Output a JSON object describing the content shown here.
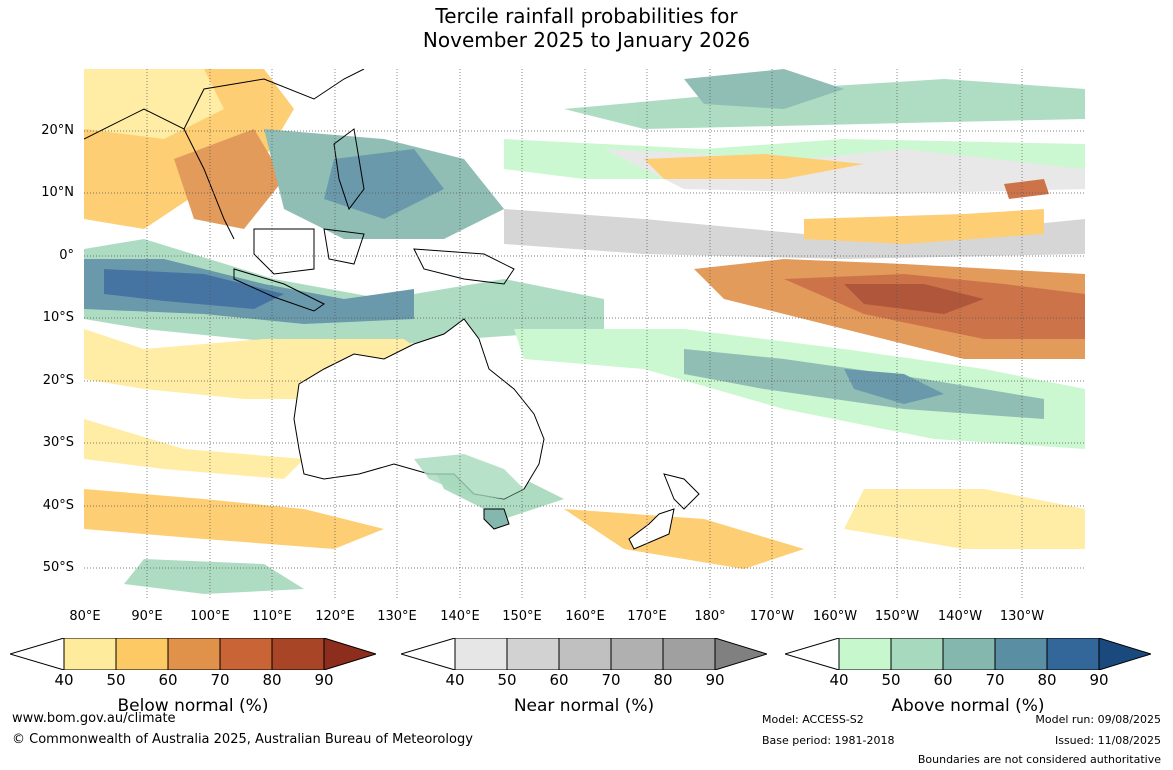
{
  "title_line1": "Tercile rainfall probabilities for",
  "title_line2": "November 2025 to January 2026",
  "latitude_labels": [
    "20°N",
    "10°N",
    "0°",
    "10°S",
    "20°S",
    "30°S",
    "40°S",
    "50°S"
  ],
  "longitude_labels": [
    "80°E",
    "90°E",
    "100°E",
    "110°E",
    "120°E",
    "130°E",
    "140°E",
    "150°E",
    "160°E",
    "170°E",
    "180°",
    "170°W",
    "160°W",
    "150°W",
    "140°W",
    "130°W"
  ],
  "colorbars": [
    {
      "title": "Below normal (%)",
      "ticks": [
        "40",
        "50",
        "60",
        "70",
        "80",
        "90"
      ],
      "colors": [
        "#ffffff",
        "#ffeb9c",
        "#fdc964",
        "#e0914a",
        "#c86436",
        "#a84526",
        "#8c2d1e"
      ]
    },
    {
      "title": "Near normal (%)",
      "ticks": [
        "40",
        "50",
        "60",
        "70",
        "80",
        "90"
      ],
      "colors": [
        "#ffffff",
        "#e6e6e6",
        "#d2d2d2",
        "#c0c0c0",
        "#b0b0b0",
        "#a0a0a0",
        "#808080"
      ]
    },
    {
      "title": "Above normal (%)",
      "ticks": [
        "40",
        "50",
        "60",
        "70",
        "80",
        "90"
      ],
      "colors": [
        "#ffffff",
        "#c6f7cd",
        "#a6d9bd",
        "#84b7ad",
        "#5a8fa3",
        "#336699",
        "#1a4a7d"
      ]
    }
  ],
  "footer": {
    "website": "www.bom.gov.au/climate",
    "copyright": "© Commonwealth of Australia 2025, Australian Bureau of Meteorology",
    "model": "Model: ACCESS-S2",
    "base_period": "Base period: 1981-2018",
    "model_run": "Model run: 09/08/2025",
    "issued": "Issued: 11/08/2025",
    "disclaimer": "Boundaries are not considered authoritative"
  }
}
